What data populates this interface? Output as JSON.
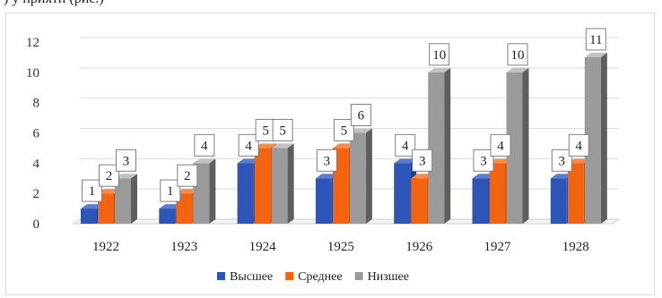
{
  "header_fragment": ") у приятн (рис.)",
  "chart_data": {
    "type": "bar",
    "categories": [
      "1922",
      "1923",
      "1924",
      "1925",
      "1926",
      "1927",
      "1928"
    ],
    "series": [
      {
        "name": "Высшее",
        "color": "#2e55b8",
        "side": "#1f3d85",
        "top": "#5a7dd0",
        "values": [
          1,
          1,
          4,
          3,
          4,
          3,
          3
        ]
      },
      {
        "name": "Среднее",
        "color": "#f4630f",
        "side": "#b9480a",
        "top": "#f88a4a",
        "values": [
          2,
          2,
          5,
          5,
          3,
          4,
          4
        ]
      },
      {
        "name": "Низшее",
        "color": "#9a9a9a",
        "side": "#5e5e5e",
        "top": "#c2c2c2",
        "values": [
          3,
          4,
          5,
          6,
          10,
          10,
          11
        ]
      }
    ],
    "yticks": [
      0,
      2,
      4,
      6,
      8,
      10,
      12
    ],
    "ylim": [
      0,
      12
    ],
    "grid": true,
    "legend_position": "bottom",
    "title": "",
    "xlabel": "",
    "ylabel": ""
  }
}
